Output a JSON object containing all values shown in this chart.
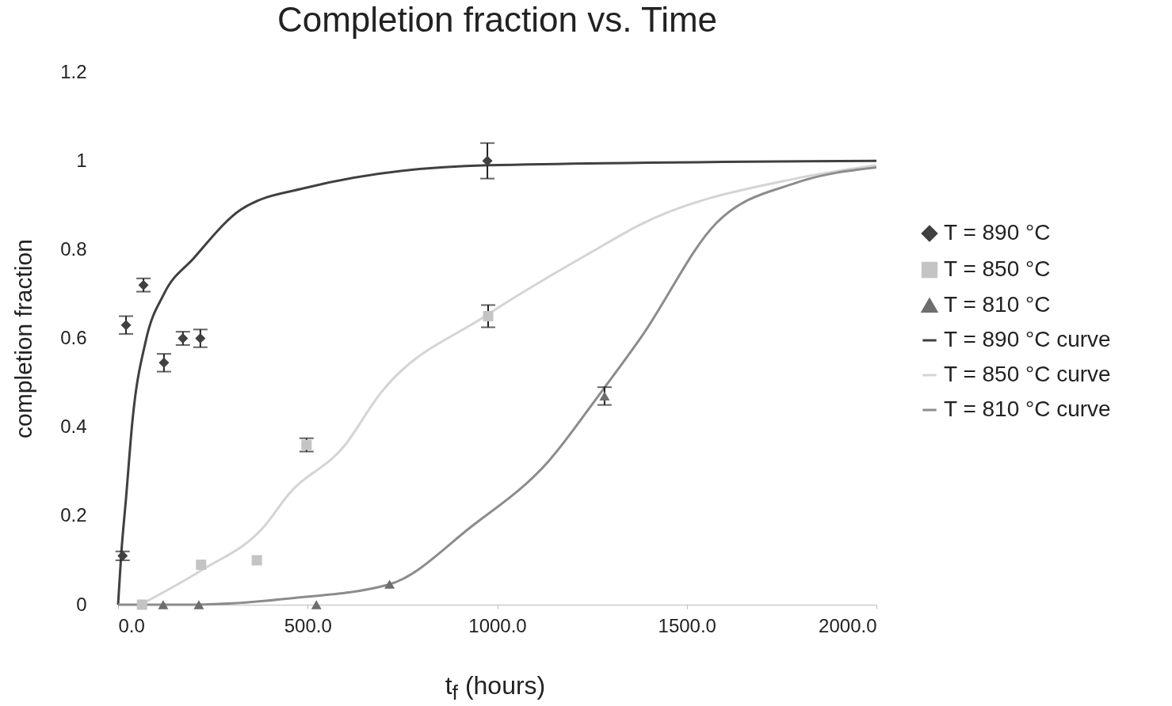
{
  "chart_data": {
    "type": "scatter",
    "title": "Completion fraction vs. Time",
    "xlabel": "t$_{f}$ (hours)",
    "ylabel": "completion fraction",
    "xlim": [
      0,
      2000
    ],
    "xticks": [
      {
        "value": 0,
        "label": "0.0"
      },
      {
        "value": 500,
        "label": "500.0"
      },
      {
        "value": 1000,
        "label": "1000.0"
      },
      {
        "value": 1500,
        "label": "1500.0"
      },
      {
        "value": 2000,
        "label": "2000.0"
      }
    ],
    "ylim": [
      0,
      1.2
    ],
    "yticks": [
      0,
      0.2,
      0.4,
      0.6,
      0.8,
      1,
      1.2
    ],
    "grid": false,
    "legend": "right",
    "series": [
      {
        "name": "T = 890 °C",
        "marker": "diamond",
        "color": "#404040",
        "x": [
          12,
          21,
          67,
          121,
          171,
          217,
          974
        ],
        "values": [
          0.11,
          0.63,
          0.72,
          0.545,
          0.6,
          0.6,
          1.0
        ],
        "errors": [
          0.01,
          0.02,
          0.015,
          0.02,
          0.015,
          0.02,
          0.04
        ]
      },
      {
        "name": "T = 850 °C",
        "marker": "square",
        "color": "#c4c4c4",
        "x": [
          63,
          219,
          366,
          497,
          976
        ],
        "values": [
          0,
          0.09,
          0.1,
          0.36,
          0.65
        ],
        "errors": [
          null,
          null,
          null,
          0.015,
          0.025
        ]
      },
      {
        "name": "T = 810 °C",
        "marker": "triangle",
        "color": "#6e6e6e",
        "x": [
          119,
          213,
          523,
          716,
          1283
        ],
        "values": [
          0,
          0,
          0,
          0.046,
          0.47
        ],
        "errors": [
          null,
          null,
          null,
          null,
          0.02
        ]
      },
      {
        "name": "T = 890 °C curve",
        "type": "line",
        "color": "#404040",
        "x": [
          0,
          8,
          21,
          38,
          73,
          121,
          199,
          324,
          500,
          974,
          2000
        ],
        "values": [
          0,
          0.11,
          0.24,
          0.415,
          0.594,
          0.7,
          0.78,
          0.89,
          0.94,
          0.99,
          1.0
        ]
      },
      {
        "name": "T = 850 °C curve",
        "type": "line",
        "color": "#d4d4d4",
        "x": [
          59,
          219,
          387,
          449,
          596,
          690,
          972,
          1254,
          1379,
          1787,
          2000
        ],
        "values": [
          0,
          0.077,
          0.178,
          0.248,
          0.357,
          0.474,
          0.652,
          0.797,
          0.857,
          0.96,
          0.99
        ]
      },
      {
        "name": "T = 810 °C curve",
        "type": "line",
        "color": "#8c8c8c",
        "x": [
          0,
          200,
          300,
          449,
          716,
          932,
          1133,
          1268,
          1379,
          1578,
          1787,
          2000
        ],
        "values": [
          0,
          0,
          0.003,
          0.014,
          0.046,
          0.176,
          0.321,
          0.472,
          0.602,
          0.86,
          0.95,
          0.985
        ]
      }
    ]
  }
}
